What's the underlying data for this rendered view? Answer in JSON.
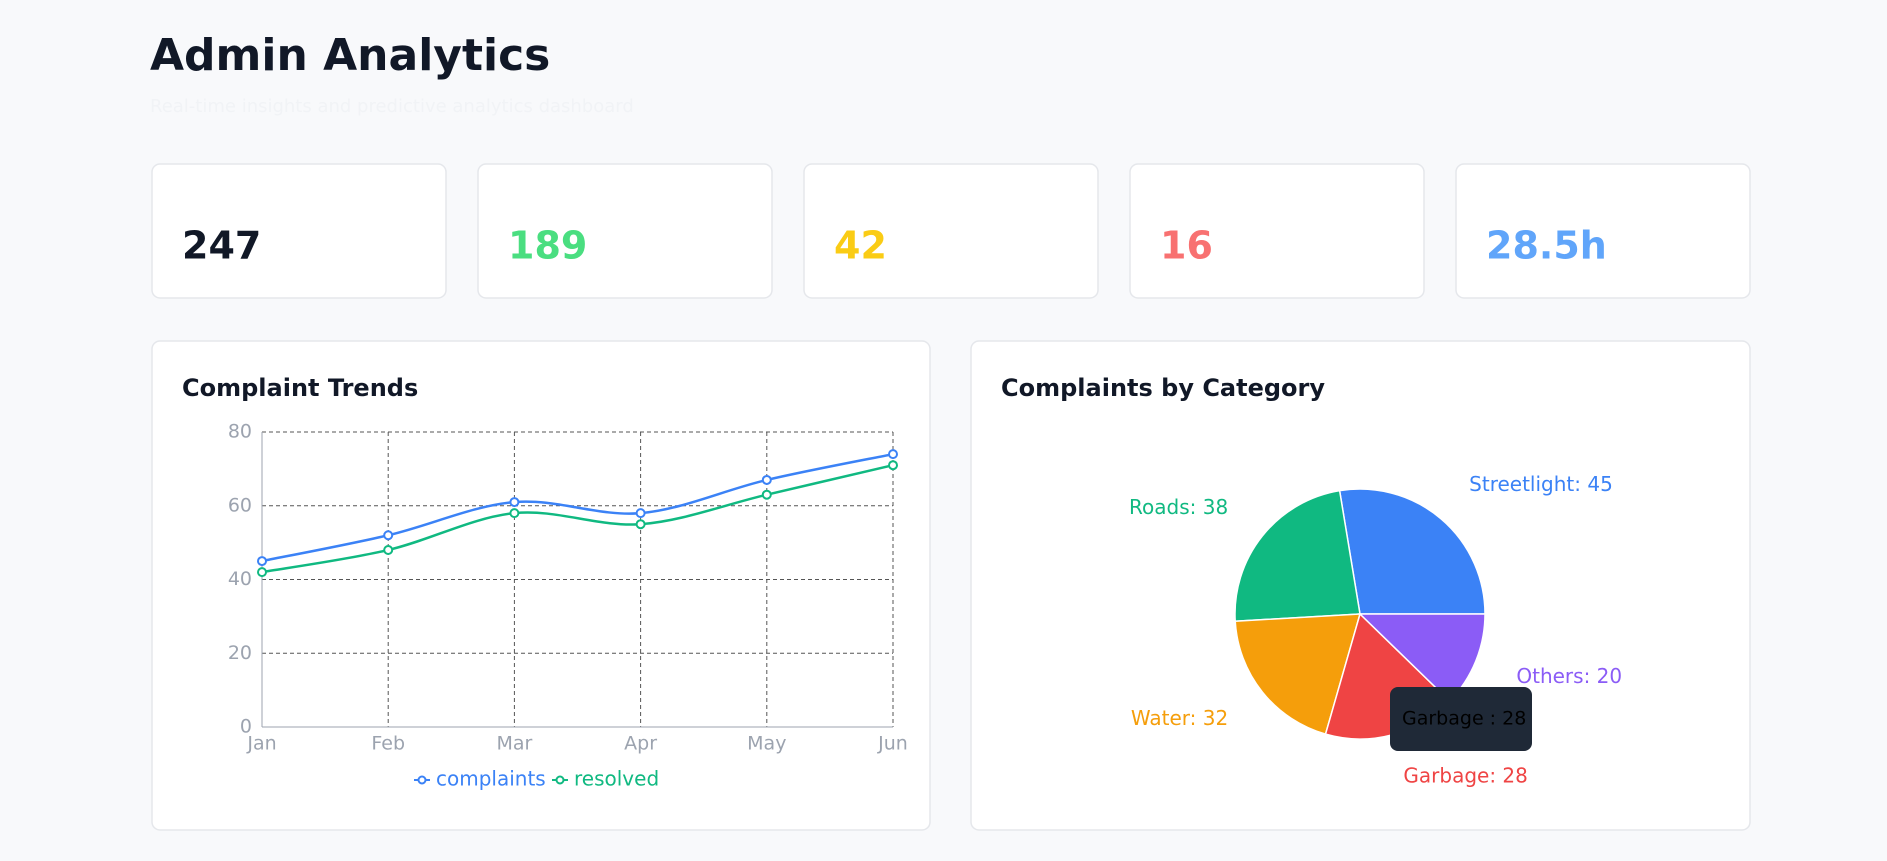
{
  "header": {
    "title": "Admin Analytics",
    "subtitle": "Real-time insights and predictive analytics dashboard"
  },
  "stats": [
    {
      "value": "247",
      "color": "#111827"
    },
    {
      "value": "189",
      "color": "#4ade80"
    },
    {
      "value": "42",
      "color": "#facc15"
    },
    {
      "value": "16",
      "color": "#f87171"
    },
    {
      "value": "28.5h",
      "color": "#60a5fa"
    }
  ],
  "chart_data": [
    {
      "type": "line",
      "title": "Complaint Trends",
      "categories": [
        "Jan",
        "Feb",
        "Mar",
        "Apr",
        "May",
        "Jun"
      ],
      "series": [
        {
          "name": "complaints",
          "color": "#3b82f6",
          "values": [
            45,
            52,
            61,
            58,
            67,
            74
          ]
        },
        {
          "name": "resolved",
          "color": "#10b981",
          "values": [
            42,
            48,
            58,
            55,
            63,
            71
          ]
        }
      ],
      "ylim": [
        0,
        80
      ],
      "yticks": [
        0,
        20,
        40,
        60,
        80
      ],
      "grid": true
    },
    {
      "type": "pie",
      "title": "Complaints by Category",
      "values": [
        45,
        38,
        32,
        28,
        20
      ],
      "value_labels": [
        "Streetlight: 45",
        "Roads: 38",
        "Water: 32",
        "Garbage: 28",
        "Others: 20"
      ],
      "colors": [
        "#3b82f6",
        "#10b981",
        "#f59e0b",
        "#ef4444",
        "#8b5cf6"
      ],
      "tooltip": "Garbage : 28"
    }
  ]
}
